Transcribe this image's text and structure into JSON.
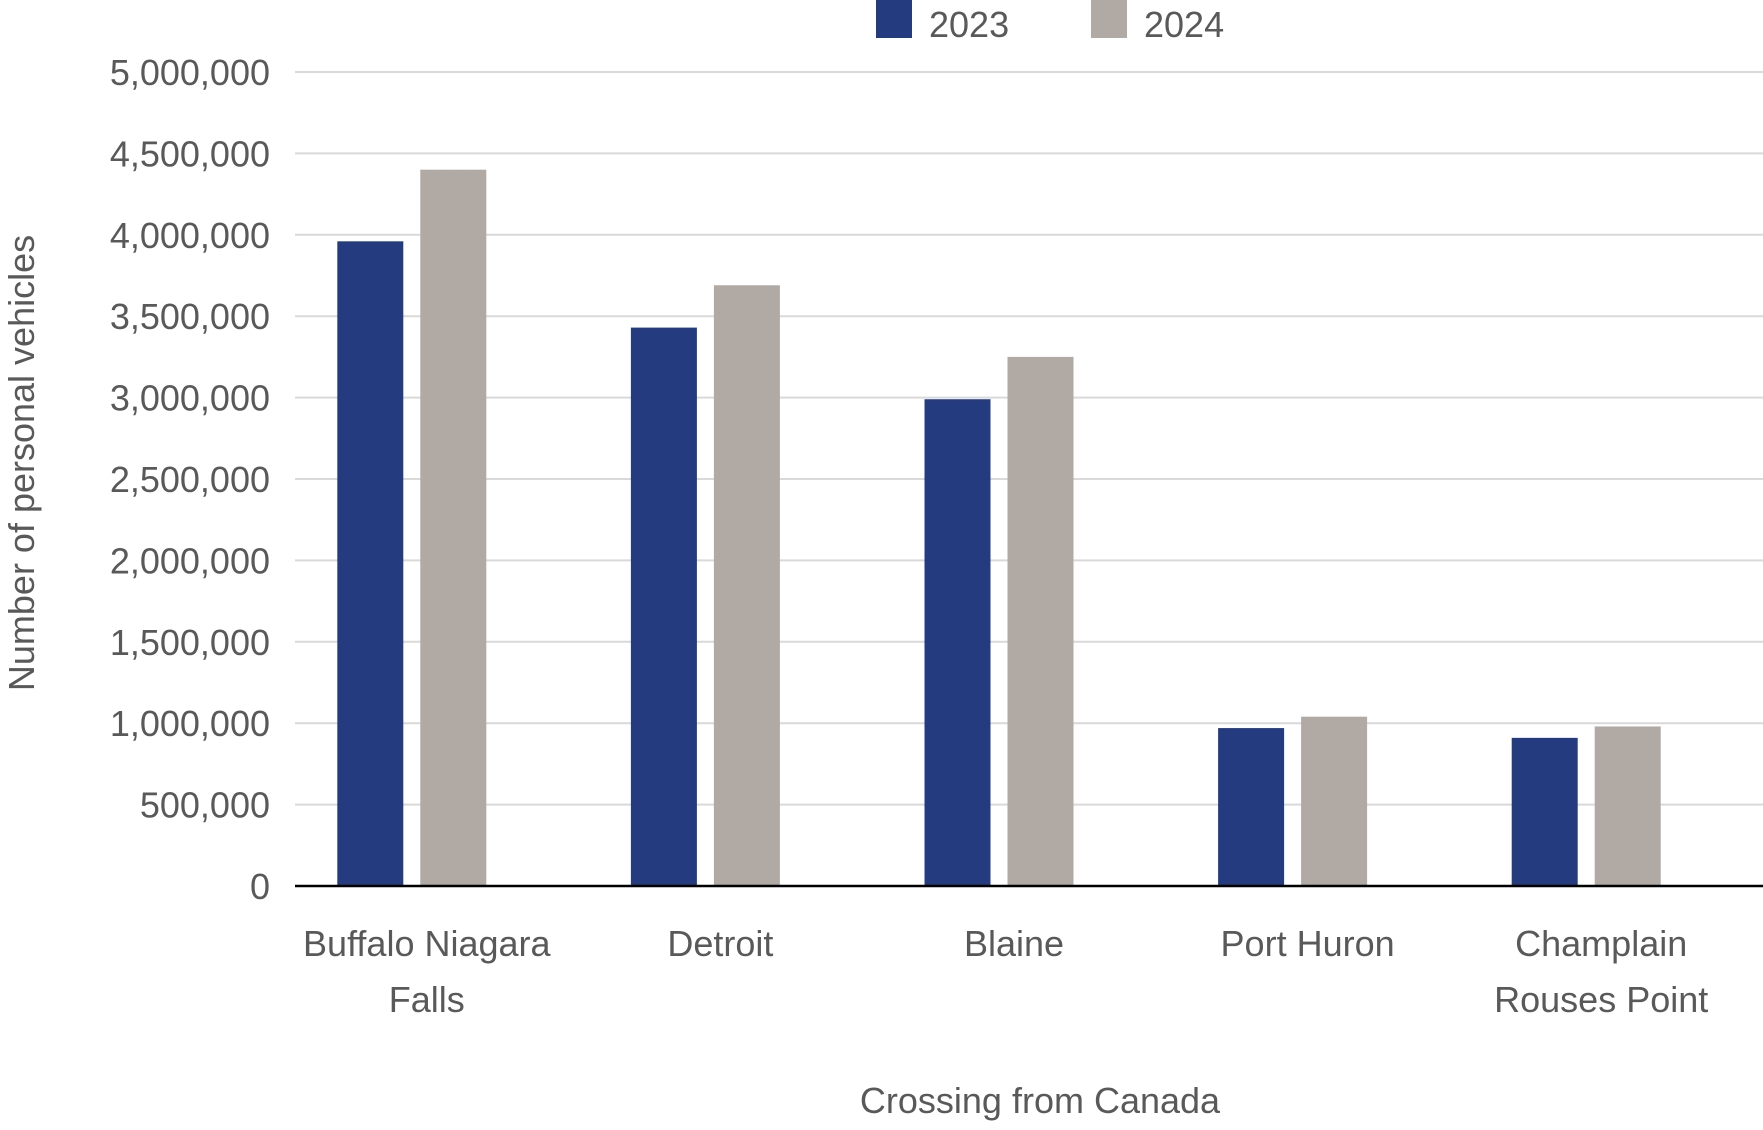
{
  "chart_data": {
    "type": "bar",
    "title": "",
    "xlabel": "Crossing from Canada",
    "ylabel": "Number of personal vehicles",
    "categories": [
      [
        "Buffalo Niagara",
        "Falls"
      ],
      [
        "Detroit"
      ],
      [
        "Blaine"
      ],
      [
        "Port Huron"
      ],
      [
        "Champlain",
        "Rouses Point"
      ]
    ],
    "series": [
      {
        "name": "2023",
        "color": "#243b7f",
        "values": [
          3960000,
          3430000,
          2990000,
          970000,
          910000
        ]
      },
      {
        "name": "2024",
        "color": "#b1a9a4",
        "values": [
          4400000,
          3690000,
          3250000,
          1040000,
          980000
        ]
      }
    ],
    "ylim": [
      0,
      5000000
    ],
    "yticks": [
      0,
      500000,
      1000000,
      1500000,
      2000000,
      2500000,
      3000000,
      3500000,
      4000000,
      4500000,
      5000000
    ],
    "ytick_labels": [
      "0",
      "500,000",
      "1,000,000",
      "1,500,000",
      "2,000,000",
      "2,500,000",
      "3,000,000",
      "3,500,000",
      "4,000,000",
      "4,500,000",
      "5,000,000"
    ],
    "grid": true,
    "legend_position": "top-center"
  }
}
